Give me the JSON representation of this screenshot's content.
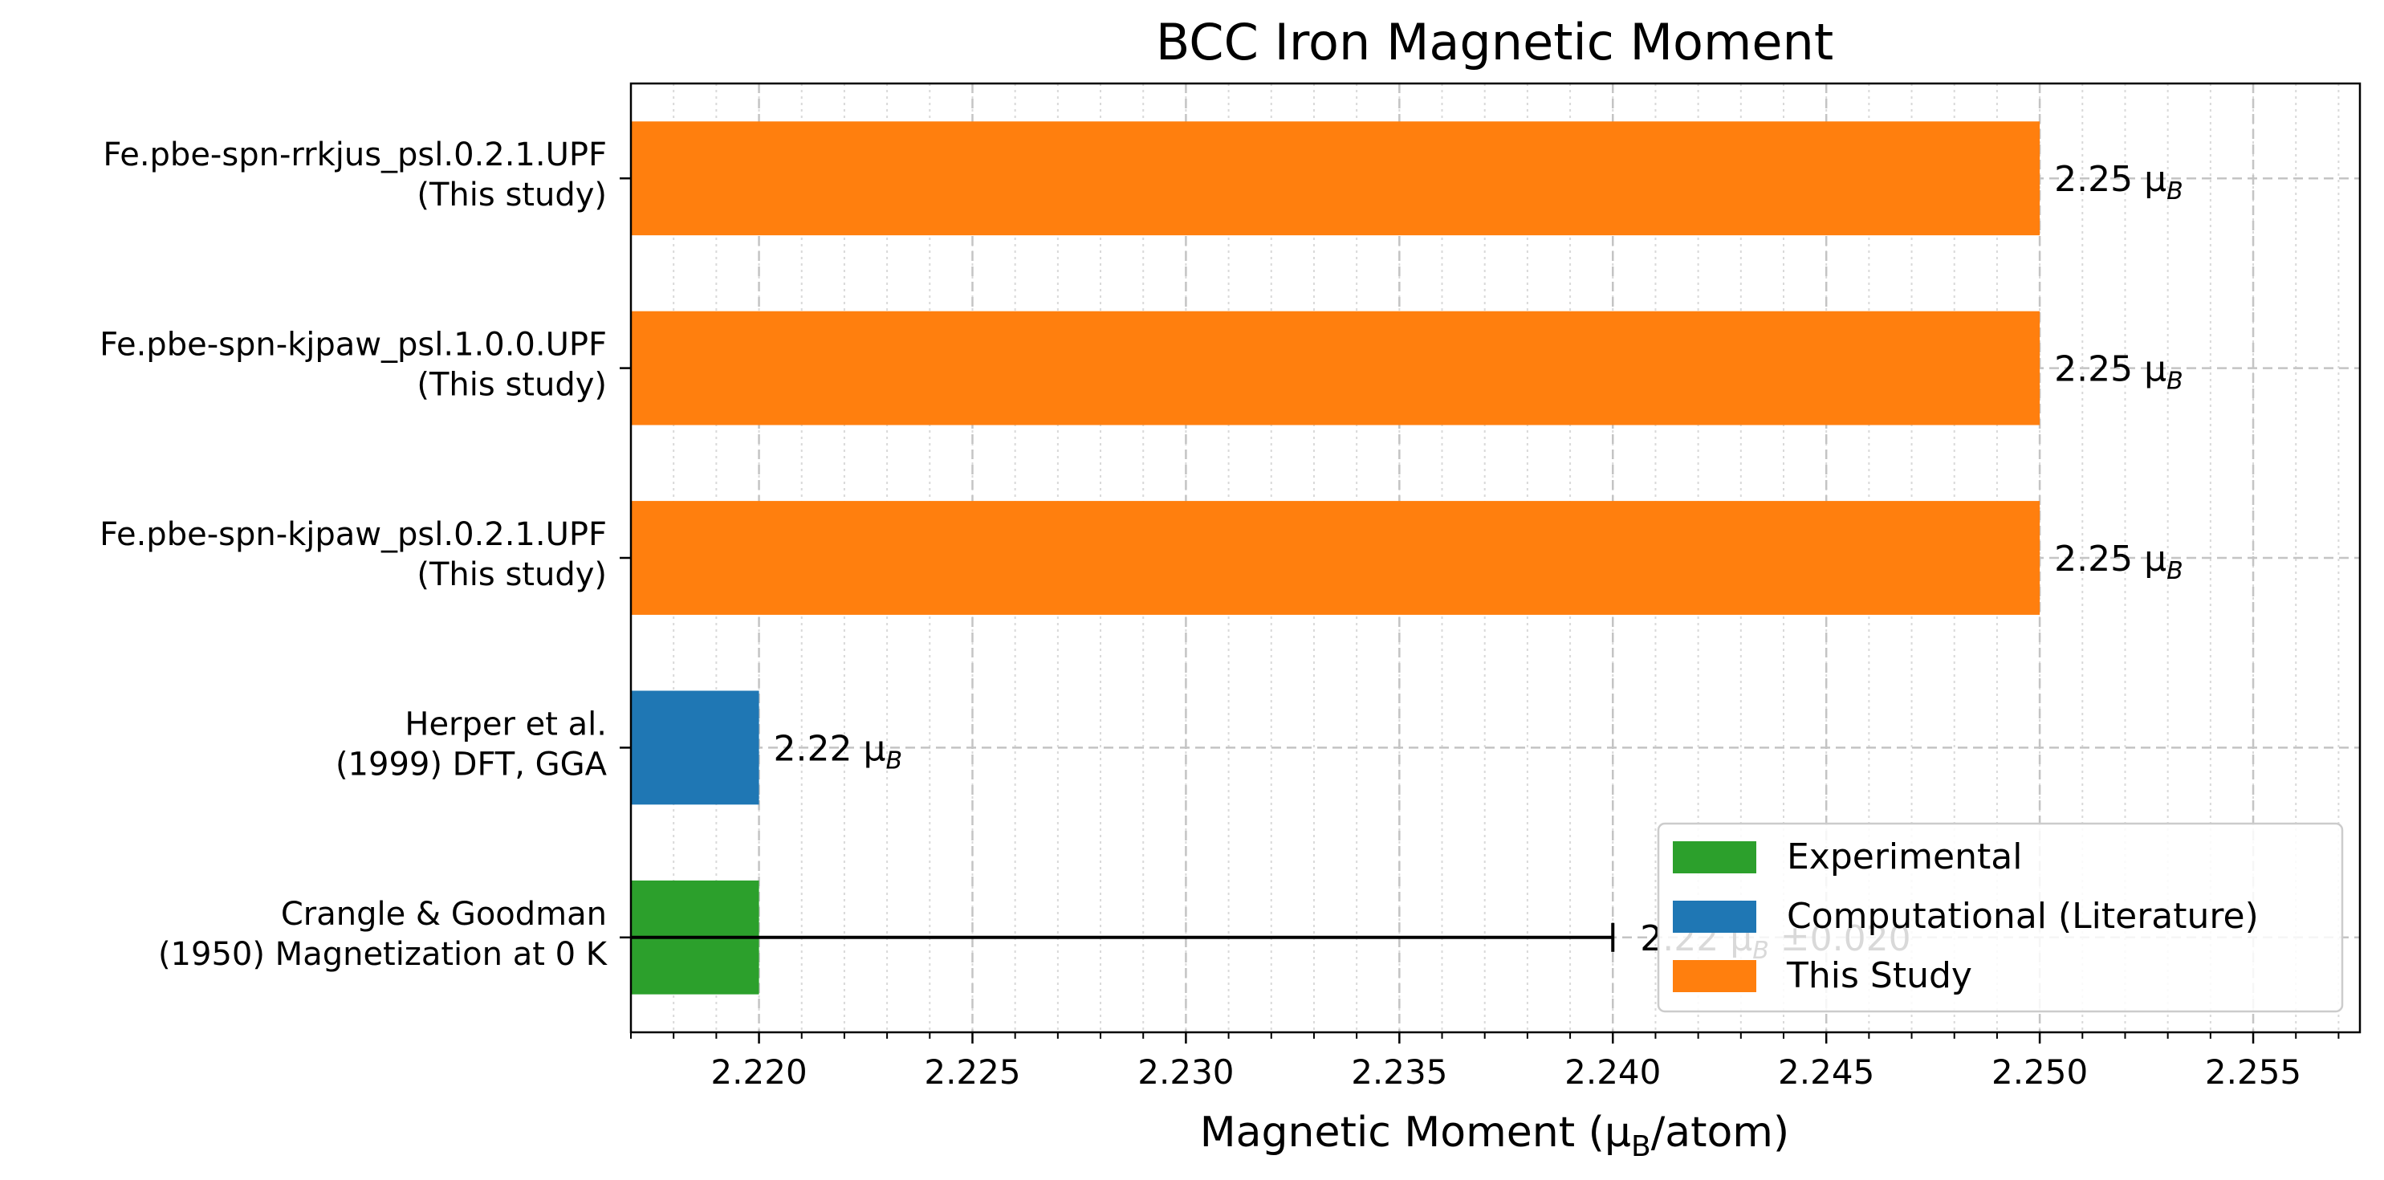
{
  "chart_data": {
    "type": "bar",
    "orientation": "horizontal",
    "title": "BCC Iron Magnetic Moment",
    "xlabel": "Magnetic Moment (μ",
    "xlabel_sub": "B",
    "xlabel_tail": "/atom)",
    "xlim": [
      2.217,
      2.2575
    ],
    "xticks": [
      "2.220",
      "2.225",
      "2.230",
      "2.235",
      "2.240",
      "2.245",
      "2.250",
      "2.255"
    ],
    "xtick_values": [
      2.22,
      2.225,
      2.23,
      2.235,
      2.24,
      2.245,
      2.25,
      2.255
    ],
    "grid": true,
    "legend_position": "bottom-right",
    "colors": {
      "experimental": "#2ca02c",
      "computational": "#1f77b4",
      "this_study": "#ff7f0e"
    },
    "categories": [
      {
        "line1": "Crangle & Goodman",
        "line2": "(1950) Magnetization at 0 K"
      },
      {
        "line1": "Herper et al.",
        "line2": "(1999) DFT, GGA"
      },
      {
        "line1": "Fe.pbe-spn-kjpaw_psl.0.2.1.UPF",
        "line2": "(This study)"
      },
      {
        "line1": "Fe.pbe-spn-kjpaw_psl.1.0.0.UPF",
        "line2": "(This study)"
      },
      {
        "line1": "Fe.pbe-spn-rrkjus_psl.0.2.1.UPF",
        "line2": "(This study)"
      }
    ],
    "values": [
      2.22,
      2.22,
      2.25,
      2.25,
      2.25
    ],
    "groups": [
      "experimental",
      "computational",
      "this_study",
      "this_study",
      "this_study"
    ],
    "error_bars": [
      0.02,
      null,
      null,
      null,
      null
    ],
    "value_labels": [
      {
        "num": "2.22 μ",
        "sub": "B",
        "tail": " ±0.020"
      },
      {
        "num": "2.22 μ",
        "sub": "B",
        "tail": ""
      },
      {
        "num": "2.25 μ",
        "sub": "B",
        "tail": ""
      },
      {
        "num": "2.25 μ",
        "sub": "B",
        "tail": ""
      },
      {
        "num": "2.25 μ",
        "sub": "B",
        "tail": ""
      }
    ],
    "legend": [
      {
        "label": "Experimental",
        "group": "experimental"
      },
      {
        "label": "Computational (Literature)",
        "group": "computational"
      },
      {
        "label": "This Study",
        "group": "this_study"
      }
    ]
  }
}
